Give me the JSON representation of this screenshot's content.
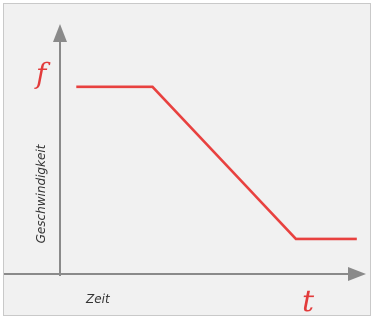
{
  "chart_data": {
    "type": "line",
    "title": "",
    "y_axis_letter": "f",
    "x_axis_letter": "t",
    "ylabel": "Geschwindigkeit",
    "xlabel": "Zeit",
    "xlim": [
      0,
      100
    ],
    "ylim": [
      0,
      100
    ],
    "grid": false,
    "legend": "none",
    "series": [
      {
        "color": "#e8413f",
        "points": [
          {
            "x": 5,
            "y": 80
          },
          {
            "x": 30,
            "y": 80
          },
          {
            "x": 77,
            "y": 15
          },
          {
            "x": 97,
            "y": 15
          }
        ]
      }
    ],
    "colors": {
      "axis": "#8a8a8a",
      "line": "#e8413f",
      "letters": "#e23b3b",
      "background": "#f1f1f1"
    }
  }
}
